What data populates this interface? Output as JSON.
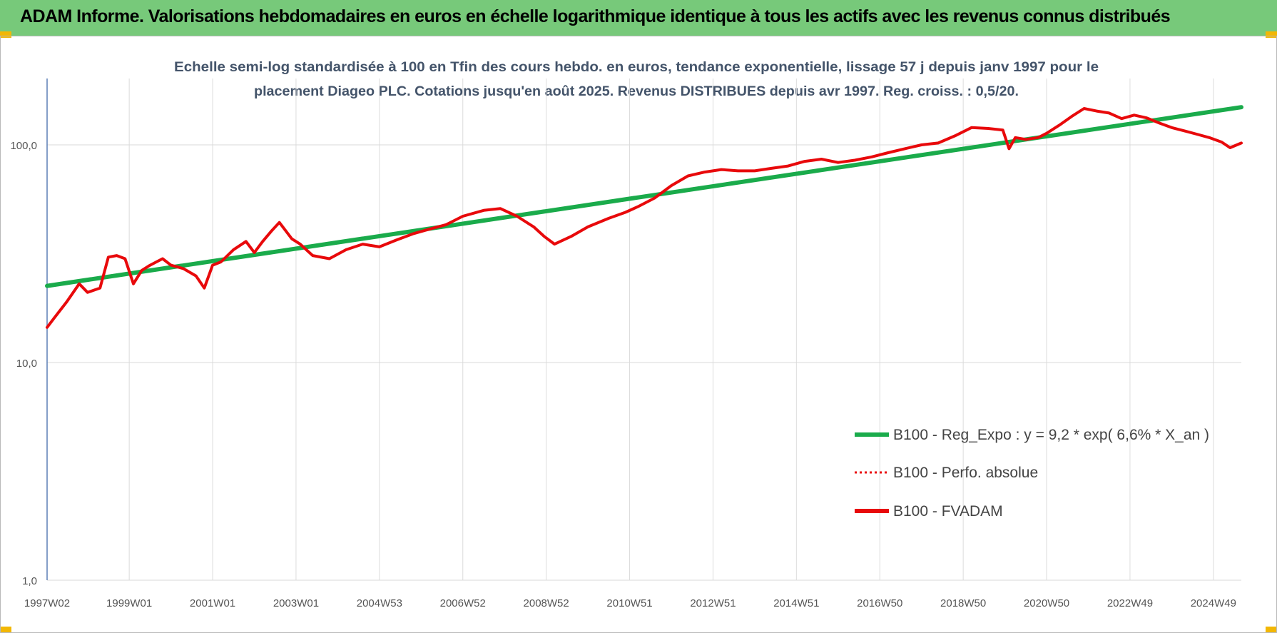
{
  "header": {
    "title": "ADAM Informe. Valorisations hebdomadaires en euros en échelle logarithmique identique à tous les actifs avec les revenus connus distribués"
  },
  "colors": {
    "banner": "#77c97a",
    "trend": "#1aab4b",
    "fvadam": "#e8090b",
    "perfo": "#e8090b",
    "corner": "#f2b705"
  },
  "chart_data": {
    "type": "line",
    "subtitle_lines": [
      "Echelle semi-log standardisée à 100 en Tfin des cours hebdo. en euros, tendance exponentielle, lissage 57 j depuis janv 1997 pour le",
      "placement Diageo PLC. Cotations jusqu'en août 2025. Revenus DISTRIBUES depuis avr 1997. Reg. croiss. : 0,5/20."
    ],
    "y_scale": "log",
    "ylim": [
      1,
      200
    ],
    "y_ticks": [
      {
        "value": 1,
        "label": "1,0"
      },
      {
        "value": 10,
        "label": "10,0"
      },
      {
        "value": 100,
        "label": "100,0"
      }
    ],
    "xlim": [
      1997.03,
      2025.67
    ],
    "x_ticks": [
      {
        "x": 1997.03,
        "label": "1997W02"
      },
      {
        "x": 1999.0,
        "label": "1999W01"
      },
      {
        "x": 2001.0,
        "label": "2001W01"
      },
      {
        "x": 2003.0,
        "label": "2003W01"
      },
      {
        "x": 2005.0,
        "label": "2004W53"
      },
      {
        "x": 2007.0,
        "label": "2006W52"
      },
      {
        "x": 2009.0,
        "label": "2008W52"
      },
      {
        "x": 2011.0,
        "label": "2010W51"
      },
      {
        "x": 2013.0,
        "label": "2012W51"
      },
      {
        "x": 2015.0,
        "label": "2014W51"
      },
      {
        "x": 2017.0,
        "label": "2016W50"
      },
      {
        "x": 2019.0,
        "label": "2018W50"
      },
      {
        "x": 2021.0,
        "label": "2020W50"
      },
      {
        "x": 2023.0,
        "label": "2022W49"
      },
      {
        "x": 2025.0,
        "label": "2024W49"
      }
    ],
    "grid": true,
    "legend_position": "bottom-right",
    "series": [
      {
        "name": "B100 - Reg_Expo : y = 9,2 * exp( 6,6% *  X_an )",
        "style": "solid",
        "x": [
          1997.03,
          2025.67
        ],
        "y": [
          22.5,
          149.0
        ]
      },
      {
        "name": "B100 - Perfo. absolue",
        "style": "dotted",
        "x": [],
        "y": []
      },
      {
        "name": "B100 - FVADAM",
        "style": "solid",
        "x": [
          1997.03,
          1997.2,
          1997.5,
          1997.8,
          1998.0,
          1998.3,
          1998.5,
          1998.7,
          1998.9,
          1999.1,
          1999.3,
          1999.5,
          1999.8,
          2000.0,
          2000.3,
          2000.6,
          2000.8,
          2001.0,
          2001.2,
          2001.5,
          2001.8,
          2002.0,
          2002.2,
          2002.4,
          2002.6,
          2002.9,
          2003.1,
          2003.4,
          2003.8,
          2004.2,
          2004.6,
          2005.0,
          2005.4,
          2005.8,
          2006.2,
          2006.6,
          2007.0,
          2007.5,
          2007.9,
          2008.3,
          2008.7,
          2008.95,
          2009.2,
          2009.6,
          2010.0,
          2010.5,
          2010.9,
          2011.2,
          2011.6,
          2012.0,
          2012.4,
          2012.8,
          2013.2,
          2013.6,
          2014.0,
          2014.4,
          2014.8,
          2015.2,
          2015.6,
          2016.0,
          2016.4,
          2016.8,
          2017.2,
          2017.6,
          2018.0,
          2018.4,
          2018.8,
          2019.2,
          2019.6,
          2019.95,
          2020.1,
          2020.25,
          2020.5,
          2020.8,
          2021.0,
          2021.3,
          2021.6,
          2021.9,
          2022.2,
          2022.5,
          2022.8,
          2023.1,
          2023.4,
          2023.7,
          2024.0,
          2024.3,
          2024.6,
          2024.9,
          2025.2,
          2025.4,
          2025.67
        ],
        "y": [
          14.5,
          16.0,
          19.0,
          23.0,
          21.0,
          22.0,
          30.5,
          31.0,
          30.0,
          23.0,
          26.5,
          28.0,
          30.0,
          28.0,
          27.0,
          25.0,
          22.0,
          28.0,
          29.0,
          33.0,
          36.0,
          32.0,
          36.0,
          40.0,
          44.0,
          37.0,
          35.0,
          31.0,
          30.0,
          33.0,
          35.0,
          34.0,
          36.5,
          39.0,
          41.0,
          43.0,
          47.0,
          50.0,
          51.0,
          47.0,
          42.0,
          38.0,
          35.0,
          38.0,
          42.0,
          46.0,
          49.0,
          52.0,
          57.0,
          65.0,
          72.0,
          75.0,
          77.0,
          76.0,
          76.0,
          78.0,
          80.0,
          84.0,
          86.0,
          83.0,
          85.0,
          88.0,
          92.0,
          96.0,
          100.0,
          102.0,
          110.0,
          120.0,
          119.0,
          117.0,
          96.0,
          108.0,
          106.0,
          108.0,
          113.0,
          123.0,
          135.0,
          147.0,
          143.0,
          140.0,
          132.0,
          137.0,
          133.0,
          126.0,
          120.0,
          116.0,
          112.0,
          108.0,
          103.0,
          97.0,
          102.0
        ]
      }
    ]
  }
}
